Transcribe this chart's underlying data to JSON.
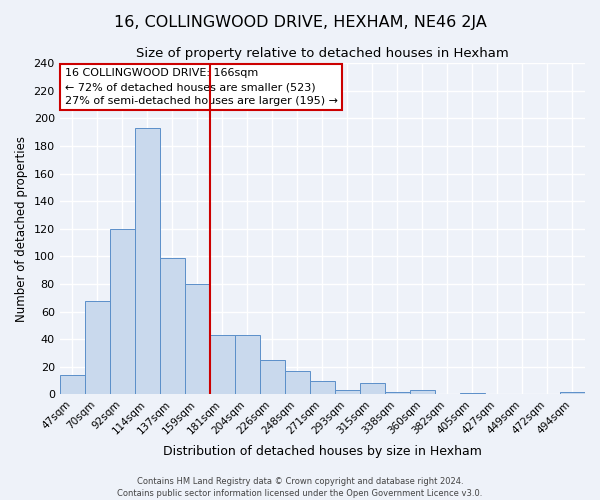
{
  "title": "16, COLLINGWOOD DRIVE, HEXHAM, NE46 2JA",
  "subtitle": "Size of property relative to detached houses in Hexham",
  "xlabel": "Distribution of detached houses by size in Hexham",
  "ylabel": "Number of detached properties",
  "bar_labels": [
    "47sqm",
    "70sqm",
    "92sqm",
    "114sqm",
    "137sqm",
    "159sqm",
    "181sqm",
    "204sqm",
    "226sqm",
    "248sqm",
    "271sqm",
    "293sqm",
    "315sqm",
    "338sqm",
    "360sqm",
    "382sqm",
    "405sqm",
    "427sqm",
    "449sqm",
    "472sqm",
    "494sqm"
  ],
  "bar_heights": [
    14,
    68,
    120,
    193,
    99,
    80,
    43,
    43,
    25,
    17,
    10,
    3,
    8,
    2,
    3,
    0,
    1,
    0,
    0,
    0,
    2
  ],
  "bar_color": "#c9d9ed",
  "bar_edge_color": "#5b8fc9",
  "background_color": "#eef2f9",
  "grid_color": "#ffffff",
  "red_line_x": 6.0,
  "annotation_title": "16 COLLINGWOOD DRIVE: 166sqm",
  "annotation_line1": "← 72% of detached houses are smaller (523)",
  "annotation_line2": "27% of semi-detached houses are larger (195) →",
  "annotation_box_edge": "#cc0000",
  "red_line_color": "#cc0000",
  "ylim": [
    0,
    240
  ],
  "yticks": [
    0,
    20,
    40,
    60,
    80,
    100,
    120,
    140,
    160,
    180,
    200,
    220,
    240
  ],
  "footer1": "Contains HM Land Registry data © Crown copyright and database right 2024.",
  "footer2": "Contains public sector information licensed under the Open Government Licence v3.0.",
  "title_fontsize": 11.5,
  "subtitle_fontsize": 9.5,
  "xlabel_fontsize": 9,
  "ylabel_fontsize": 8.5,
  "tick_fontsize": 7.5,
  "ytick_fontsize": 8,
  "footer_fontsize": 6,
  "annot_fontsize": 8
}
